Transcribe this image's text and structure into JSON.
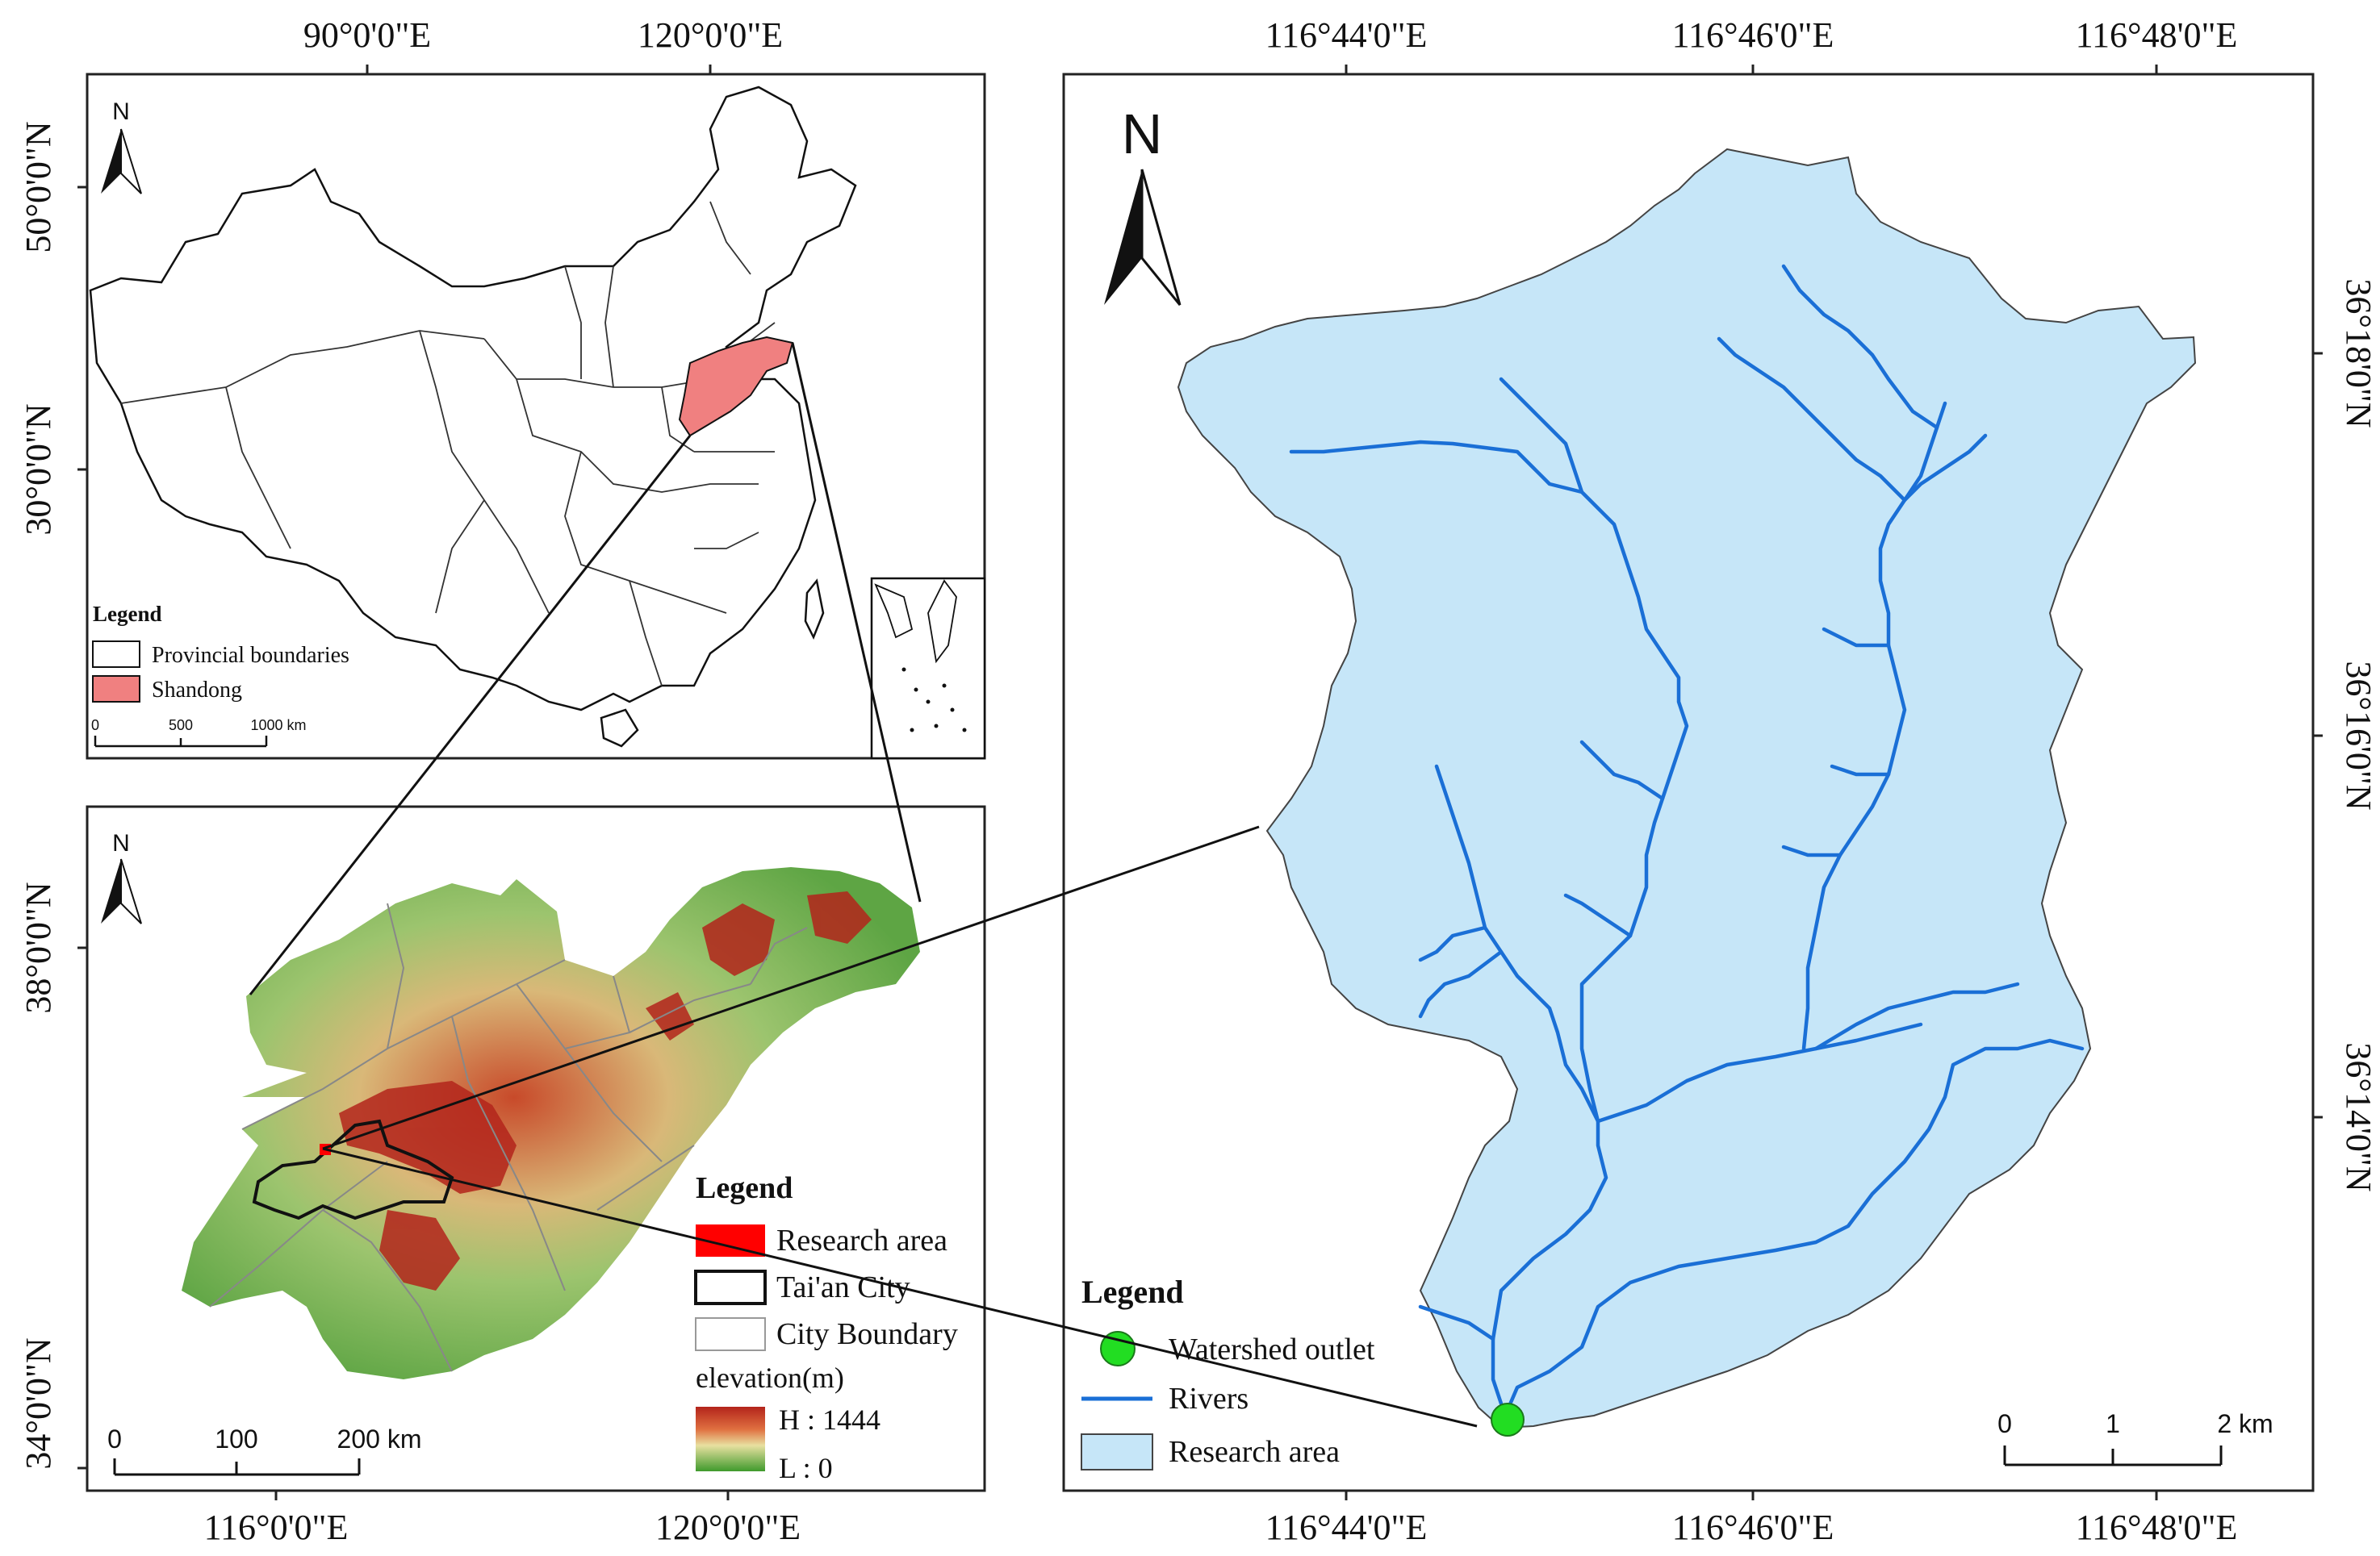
{
  "china_map": {
    "top_ticks": [
      "90°0'0\"E",
      "120°0'0\"E"
    ],
    "left_ticks": [
      "50°0'0\"N",
      "30°0'0\"N"
    ],
    "north_label": "N",
    "legend_title": "Legend",
    "legend_items": [
      {
        "label": "Provincial boundaries",
        "color": "#ffffff"
      },
      {
        "label": "Shandong",
        "color": "#f08080"
      }
    ],
    "scale_labels": [
      "0",
      "500",
      "1000 km"
    ]
  },
  "shandong_map": {
    "bottom_ticks": [
      "116°0'0\"E",
      "120°0'0\"E"
    ],
    "left_ticks": [
      "38°0'0\"N",
      "34°0'0\"N"
    ],
    "north_label": "N",
    "legend_title": "Legend",
    "legend_items": [
      {
        "label": "Research area",
        "color": "#ff0000"
      },
      {
        "label": "Tai'an City",
        "color": "#ffffff"
      },
      {
        "label": "City Boundary",
        "color": "#ffffff"
      }
    ],
    "elevation_title": "elevation(m)",
    "elevation_high": "H : 1444",
    "elevation_low": "L : 0",
    "scale_labels": [
      "0",
      "100",
      "200 km"
    ]
  },
  "watershed_map": {
    "top_ticks": [
      "116°44'0\"E",
      "116°46'0\"E",
      "116°48'0\"E"
    ],
    "bottom_ticks": [
      "116°44'0\"E",
      "116°46'0\"E",
      "116°48'0\"E"
    ],
    "right_ticks": [
      "36°18'0\"N",
      "36°16'0\"N",
      "36°14'0\"N"
    ],
    "north_label": "N",
    "legend_title": "Legend",
    "legend_items": [
      {
        "label": "Watershed outlet",
        "color": "#22dd22"
      },
      {
        "label": "Rivers",
        "color": "#1a6fd6"
      },
      {
        "label": "Research area",
        "color": "#c6e6f8"
      }
    ],
    "scale_labels": [
      "0",
      "1",
      "2 km"
    ]
  }
}
